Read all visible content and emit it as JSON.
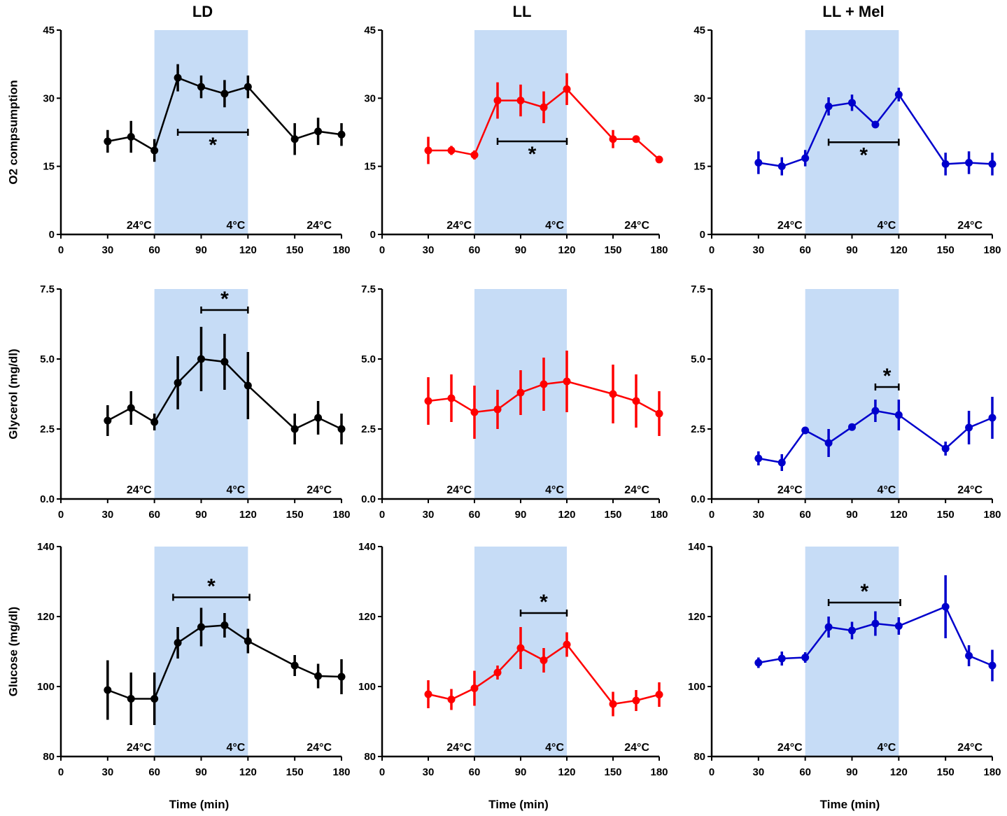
{
  "chart_data": [
    {
      "type": "line",
      "column": "LD",
      "ylabel": "O2 compsumption",
      "xlabel": "",
      "ylim": [
        0,
        45
      ],
      "yticks": [
        "0",
        "15",
        "30",
        "45"
      ],
      "xticks": [
        "0",
        "30",
        "60",
        "90",
        "120",
        "150",
        "180"
      ],
      "xlim": [
        0,
        180
      ],
      "color": "#000000",
      "shade": [
        60,
        120
      ],
      "series": [
        {
          "name": "LD",
          "x": [
            30,
            45,
            60,
            75,
            90,
            105,
            120,
            150,
            165,
            180
          ],
          "y": [
            20.5,
            21.5,
            18.5,
            34.5,
            32.5,
            31,
            32.5,
            21,
            22.7,
            22
          ],
          "err": [
            2.5,
            3.5,
            2.5,
            3,
            2.5,
            3,
            2.5,
            3.5,
            3,
            2.5
          ]
        }
      ],
      "sig": {
        "from": 75,
        "to": 120,
        "y": 22.5,
        "label": "*"
      },
      "temps": [
        "24°C",
        "4°C",
        "24°C"
      ]
    },
    {
      "type": "line",
      "column": "LL",
      "ylabel": "",
      "xlabel": "",
      "ylim": [
        0,
        45
      ],
      "yticks": [
        "0",
        "15",
        "30",
        "45"
      ],
      "xticks": [
        "0",
        "30",
        "60",
        "90",
        "120",
        "150",
        "180"
      ],
      "xlim": [
        0,
        180
      ],
      "color": "#ff0000",
      "shade": [
        60,
        120
      ],
      "series": [
        {
          "name": "LL",
          "x": [
            30,
            45,
            60,
            75,
            90,
            105,
            120,
            150,
            165,
            180
          ],
          "y": [
            18.5,
            18.5,
            17.5,
            29.5,
            29.5,
            28,
            32,
            21,
            21,
            16.5
          ],
          "err": [
            3,
            1,
            1,
            4,
            3.5,
            3.5,
            3.5,
            2,
            0.5,
            0
          ]
        }
      ],
      "sig": {
        "from": 75,
        "to": 120,
        "y": 20.5,
        "label": "*"
      },
      "temps": [
        "24°C",
        "4°C",
        "24°C"
      ]
    },
    {
      "type": "line",
      "column": "LL + Mel",
      "ylabel": "",
      "xlabel": "",
      "ylim": [
        0,
        45
      ],
      "yticks": [
        "0",
        "15",
        "30",
        "45"
      ],
      "xticks": [
        "0",
        "30",
        "60",
        "90",
        "120",
        "150",
        "180"
      ],
      "xlim": [
        0,
        180
      ],
      "color": "#0000cc",
      "shade": [
        60,
        120
      ],
      "series": [
        {
          "name": "LL + Mel",
          "x": [
            30,
            45,
            60,
            75,
            90,
            105,
            120,
            150,
            165,
            180
          ],
          "y": [
            15.8,
            15,
            16.8,
            28.2,
            29,
            24.2,
            30.8,
            15.5,
            15.8,
            15.5
          ],
          "err": [
            2.5,
            2,
            1.8,
            2,
            1.8,
            0.5,
            1.5,
            2.5,
            2.5,
            2.5
          ]
        }
      ],
      "sig": {
        "from": 75,
        "to": 120,
        "y": 20.3,
        "label": "*"
      },
      "temps": [
        "24°C",
        "4°C",
        "24°C"
      ]
    },
    {
      "type": "line",
      "column": "LD",
      "ylabel": "Glycerol (mg/dl)",
      "xlabel": "",
      "ylim": [
        0,
        7.5
      ],
      "yticks": [
        "0.0",
        "2.5",
        "5.0",
        "7.5"
      ],
      "xticks": [
        "0",
        "30",
        "60",
        "90",
        "120",
        "150",
        "180"
      ],
      "xlim": [
        0,
        180
      ],
      "color": "#000000",
      "shade": [
        60,
        120
      ],
      "series": [
        {
          "name": "LD",
          "x": [
            30,
            45,
            60,
            75,
            90,
            105,
            120,
            150,
            165,
            180
          ],
          "y": [
            2.8,
            3.25,
            2.75,
            4.15,
            5.0,
            4.9,
            4.05,
            2.5,
            2.9,
            2.5
          ],
          "err": [
            0.55,
            0.6,
            0.3,
            0.95,
            1.15,
            1.0,
            1.2,
            0.55,
            0.6,
            0.55
          ]
        }
      ],
      "sig": {
        "from": 90,
        "to": 120,
        "y": 6.75,
        "label": "*"
      },
      "temps": [
        "24°C",
        "4°C",
        "24°C"
      ]
    },
    {
      "type": "line",
      "column": "LL",
      "ylabel": "",
      "xlabel": "",
      "ylim": [
        0,
        7.5
      ],
      "yticks": [
        "0.0",
        "2.5",
        "5.0",
        "7.5"
      ],
      "xticks": [
        "0",
        "30",
        "60",
        "90",
        "120",
        "150",
        "180"
      ],
      "xlim": [
        0,
        180
      ],
      "color": "#ff0000",
      "shade": [
        60,
        120
      ],
      "series": [
        {
          "name": "LL",
          "x": [
            30,
            45,
            60,
            75,
            90,
            105,
            120,
            150,
            165,
            180
          ],
          "y": [
            3.5,
            3.6,
            3.1,
            3.2,
            3.8,
            4.1,
            4.2,
            3.75,
            3.5,
            3.05
          ],
          "err": [
            0.85,
            0.85,
            0.95,
            0.7,
            0.8,
            0.95,
            1.1,
            1.05,
            0.95,
            0.8
          ]
        }
      ],
      "sig": null,
      "temps": [
        "24°C",
        "4°C",
        "24°C"
      ]
    },
    {
      "type": "line",
      "column": "LL + Mel",
      "ylabel": "",
      "xlabel": "",
      "ylim": [
        0,
        7.5
      ],
      "yticks": [
        "0.0",
        "2.5",
        "5.0",
        "7.5"
      ],
      "xticks": [
        "0",
        "30",
        "60",
        "90",
        "120",
        "150",
        "180"
      ],
      "xlim": [
        0,
        180
      ],
      "color": "#0000cc",
      "shade": [
        60,
        120
      ],
      "series": [
        {
          "name": "LL + Mel",
          "x": [
            30,
            45,
            60,
            75,
            90,
            105,
            120,
            150,
            165,
            180
          ],
          "y": [
            1.45,
            1.3,
            2.45,
            2.0,
            2.57,
            3.15,
            3.0,
            1.8,
            2.55,
            2.9
          ],
          "err": [
            0.25,
            0.3,
            0.1,
            0.5,
            0.1,
            0.4,
            0.55,
            0.25,
            0.6,
            0.75
          ]
        }
      ],
      "sig": {
        "from": 105,
        "to": 120,
        "y": 4.0,
        "label": "*"
      },
      "temps": [
        "24°C",
        "4°C",
        "24°C"
      ]
    },
    {
      "type": "line",
      "column": "LD",
      "ylabel": "Glucose (mg/dl)",
      "xlabel": "Time (min)",
      "ylim": [
        80,
        140
      ],
      "yticks": [
        "80",
        "100",
        "120",
        "140"
      ],
      "xticks": [
        "0",
        "30",
        "60",
        "90",
        "120",
        "150",
        "180"
      ],
      "xlim": [
        0,
        180
      ],
      "color": "#000000",
      "shade": [
        60,
        120
      ],
      "series": [
        {
          "name": "LD",
          "x": [
            30,
            45,
            60,
            75,
            90,
            105,
            120,
            150,
            165,
            180
          ],
          "y": [
            99,
            96.5,
            96.5,
            112.5,
            117,
            117.5,
            113,
            106,
            103,
            102.8
          ],
          "err": [
            8.5,
            7.5,
            7.5,
            4.5,
            5.5,
            3.5,
            3.5,
            3,
            3.5,
            5
          ]
        }
      ],
      "sig": {
        "from": 72,
        "to": 121,
        "y": 125.5,
        "label": "*"
      },
      "temps": [
        "24°C",
        "4°C",
        "24°C"
      ]
    },
    {
      "type": "line",
      "column": "LL",
      "ylabel": "",
      "xlabel": "Time (min)",
      "ylim": [
        80,
        140
      ],
      "yticks": [
        "80",
        "100",
        "120",
        "140"
      ],
      "xticks": [
        "0",
        "30",
        "60",
        "90",
        "120",
        "150",
        "180"
      ],
      "xlim": [
        0,
        180
      ],
      "color": "#ff0000",
      "shade": [
        60,
        120
      ],
      "series": [
        {
          "name": "LL",
          "x": [
            30,
            45,
            60,
            75,
            90,
            105,
            120,
            150,
            165,
            180
          ],
          "y": [
            97.8,
            96.3,
            99.5,
            104,
            111,
            107.5,
            112,
            95,
            96,
            97.7
          ],
          "err": [
            4,
            3,
            5,
            2,
            6,
            3.5,
            3.5,
            3.5,
            3,
            3.5
          ]
        }
      ],
      "sig": {
        "from": 90,
        "to": 120,
        "y": 121,
        "label": "*"
      },
      "temps": [
        "24°C",
        "4°C",
        "24°C"
      ]
    },
    {
      "type": "line",
      "column": "LL + Mel",
      "ylabel": "",
      "xlabel": "Time (min)",
      "ylim": [
        80,
        140
      ],
      "yticks": [
        "80",
        "100",
        "120",
        "140"
      ],
      "xticks": [
        "0",
        "30",
        "60",
        "90",
        "120",
        "150",
        "180"
      ],
      "xlim": [
        0,
        180
      ],
      "color": "#0000cc",
      "shade": [
        60,
        120
      ],
      "series": [
        {
          "name": "LL + Mel",
          "x": [
            30,
            45,
            60,
            75,
            90,
            105,
            120,
            150,
            165,
            180
          ],
          "y": [
            106.8,
            108,
            108.3,
            117,
            116,
            118,
            117.3,
            122.8,
            108.8,
            106
          ],
          "err": [
            1.5,
            2,
            1.5,
            3,
            2.5,
            3.5,
            2.5,
            9,
            3,
            4.5
          ]
        }
      ],
      "sig": {
        "from": 75,
        "to": 121,
        "y": 124,
        "label": "*"
      },
      "temps": [
        "24°C",
        "4°C",
        "24°C"
      ]
    }
  ]
}
